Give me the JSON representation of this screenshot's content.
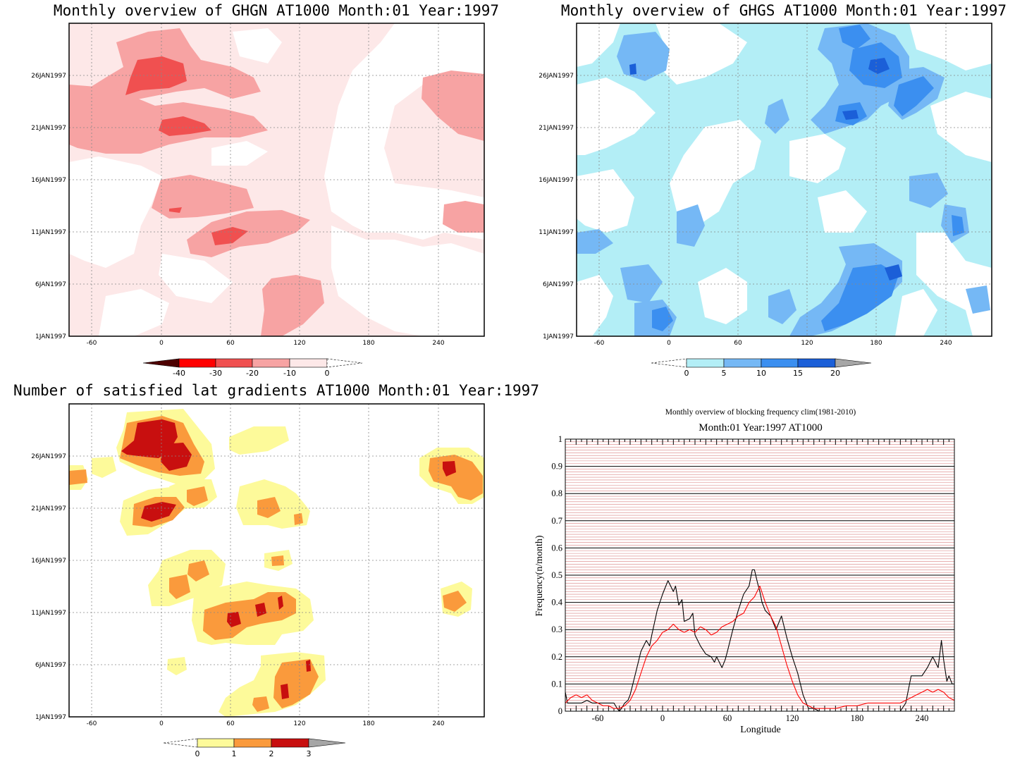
{
  "panels": {
    "ghgn": {
      "title": "Monthly overview of GHGN AT1000 Month:01 Year:1997",
      "y_ticks": [
        "26JAN1997",
        "21JAN1997",
        "16JAN1997",
        "11JAN1997",
        "6JAN1997",
        "1JAN1997"
      ],
      "x_ticks": [
        "-60",
        "0",
        "60",
        "120",
        "180",
        "240"
      ],
      "colorbar": {
        "ticks": [
          "-40",
          "-30",
          "-20",
          "-10",
          "0"
        ],
        "colors": [
          "#4d0000",
          "#ff0000",
          "#f05050",
          "#f7a3a3",
          "#fde8e8"
        ]
      }
    },
    "ghgs": {
      "title": "Monthly overview of GHGS AT1000 Month:01 Year:1997",
      "y_ticks": [
        "26JAN1997",
        "21JAN1997",
        "16JAN1997",
        "11JAN1997",
        "6JAN1997",
        "1JAN1997"
      ],
      "x_ticks": [
        "-60",
        "0",
        "60",
        "120",
        "180",
        "240"
      ],
      "colorbar": {
        "ticks": [
          "0",
          "5",
          "10",
          "15",
          "20"
        ],
        "colors": [
          "#b3eef6",
          "#75b8f5",
          "#3b8ff0",
          "#1b5fd8",
          "#a6a6a6"
        ]
      }
    },
    "lat": {
      "title": "Number of satisfied lat gradients AT1000 Month:01 Year:1997",
      "y_ticks": [
        "26JAN1997",
        "21JAN1997",
        "16JAN1997",
        "11JAN1997",
        "6JAN1997",
        "1JAN1997"
      ],
      "x_ticks": [
        "-60",
        "0",
        "60",
        "120",
        "180",
        "240"
      ],
      "colorbar": {
        "ticks": [
          "0",
          "1",
          "2",
          "3"
        ],
        "colors": [
          "#fdfa9a",
          "#fa9a3c",
          "#c80f0f",
          "#a6a6a6"
        ]
      }
    }
  },
  "chart_data": {
    "type": "line",
    "title": "Monthly overview of blocking frequency clim(1981-2010)",
    "subtitle": "Month:01 Year:1997  AT1000",
    "xlabel": "Longitude",
    "ylabel": "Frequency(n/month)",
    "xlim": [
      -90,
      270
    ],
    "ylim": [
      0,
      1
    ],
    "x_ticks": [
      "-60",
      "0",
      "60",
      "120",
      "180",
      "240"
    ],
    "y_ticks": [
      "0",
      "0.1",
      "0.2",
      "0.3",
      "0.4",
      "0.5",
      "0.6",
      "0.7",
      "0.8",
      "0.9",
      "1"
    ],
    "grid": true,
    "series": [
      {
        "color": "#000000",
        "x": [
          -90,
          -88,
          -85,
          -80,
          -75,
          -70,
          -65,
          -60,
          -55,
          -50,
          -45,
          -42,
          -40,
          -38,
          -35,
          -32,
          -30,
          -25,
          -20,
          -15,
          -12,
          -10,
          -5,
          0,
          5,
          10,
          12,
          15,
          18,
          20,
          25,
          28,
          30,
          35,
          40,
          45,
          48,
          50,
          55,
          58,
          60,
          65,
          70,
          75,
          80,
          83,
          85,
          88,
          90,
          92,
          95,
          100,
          105,
          110,
          115,
          120,
          125,
          130,
          135,
          140,
          145,
          150,
          200,
          220,
          225,
          230,
          240,
          245,
          250,
          255,
          258,
          260,
          263,
          265,
          268,
          270
        ],
        "y": [
          0.07,
          0.03,
          0.03,
          0.03,
          0.03,
          0.04,
          0.03,
          0.03,
          0.03,
          0.03,
          0.03,
          0.01,
          0.0,
          0.01,
          0.03,
          0.04,
          0.06,
          0.14,
          0.22,
          0.26,
          0.24,
          0.28,
          0.37,
          0.43,
          0.48,
          0.44,
          0.46,
          0.39,
          0.41,
          0.33,
          0.34,
          0.36,
          0.28,
          0.24,
          0.21,
          0.2,
          0.18,
          0.2,
          0.16,
          0.19,
          0.22,
          0.3,
          0.37,
          0.43,
          0.46,
          0.52,
          0.52,
          0.47,
          0.44,
          0.4,
          0.37,
          0.35,
          0.3,
          0.35,
          0.27,
          0.2,
          0.14,
          0.06,
          0.01,
          0.01,
          0.0,
          0.0,
          0.0,
          0.0,
          0.03,
          0.13,
          0.13,
          0.16,
          0.2,
          0.16,
          0.26,
          0.19,
          0.11,
          0.13,
          0.1,
          0.1
        ]
      },
      {
        "color": "#ff0000",
        "x": [
          -90,
          -85,
          -80,
          -75,
          -70,
          -65,
          -60,
          -55,
          -50,
          -45,
          -40,
          -35,
          -30,
          -25,
          -20,
          -15,
          -10,
          -5,
          0,
          5,
          10,
          15,
          20,
          25,
          30,
          35,
          40,
          45,
          50,
          55,
          60,
          65,
          70,
          75,
          80,
          85,
          90,
          95,
          100,
          105,
          110,
          115,
          120,
          125,
          130,
          135,
          140,
          150,
          160,
          170,
          180,
          190,
          200,
          210,
          220,
          230,
          235,
          240,
          245,
          250,
          255,
          260,
          265,
          270
        ],
        "y": [
          0.03,
          0.05,
          0.06,
          0.05,
          0.06,
          0.04,
          0.03,
          0.02,
          0.02,
          0.01,
          0.01,
          0.02,
          0.04,
          0.08,
          0.14,
          0.2,
          0.24,
          0.26,
          0.29,
          0.3,
          0.32,
          0.3,
          0.29,
          0.3,
          0.29,
          0.31,
          0.3,
          0.28,
          0.29,
          0.31,
          0.32,
          0.33,
          0.35,
          0.36,
          0.4,
          0.42,
          0.46,
          0.4,
          0.35,
          0.31,
          0.24,
          0.17,
          0.11,
          0.06,
          0.03,
          0.02,
          0.01,
          0.01,
          0.01,
          0.02,
          0.02,
          0.03,
          0.03,
          0.03,
          0.03,
          0.05,
          0.06,
          0.07,
          0.08,
          0.07,
          0.08,
          0.07,
          0.05,
          0.04
        ]
      }
    ]
  }
}
